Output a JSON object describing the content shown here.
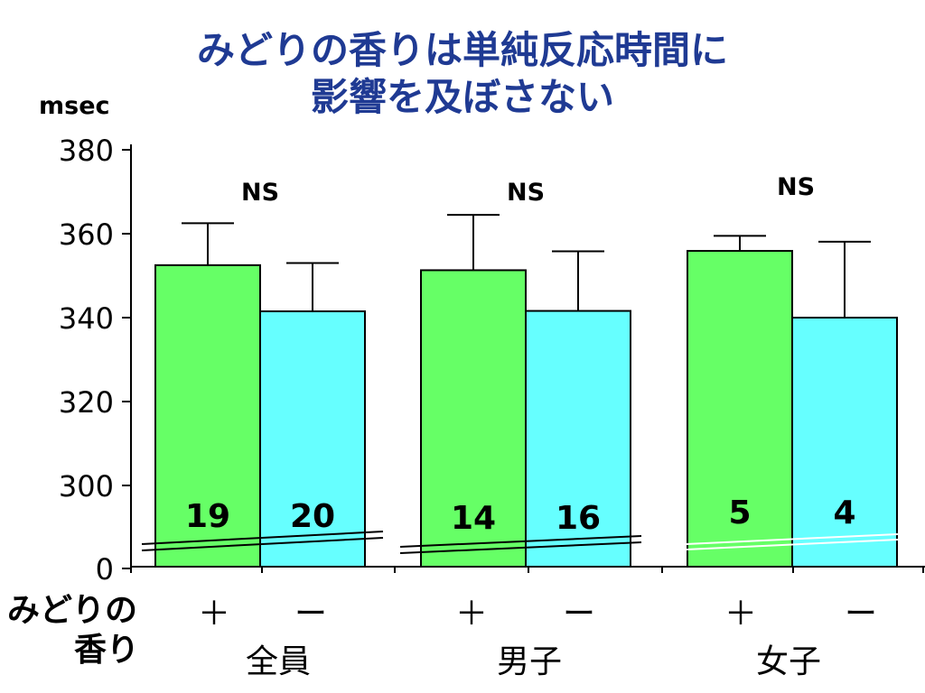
{
  "title_lines": [
    "みどりの香りは単純反応時間に",
    "影響を及ぼさない"
  ],
  "colors": {
    "green": "#66ff66",
    "cyan": "#66ffff",
    "title": "#1f3a93",
    "axis": "#000000"
  },
  "chart_data": {
    "type": "bar",
    "title": "みどりの香りは単純反応時間に 影響を及ぼさない",
    "ylabel": "msec",
    "y_axis_break": true,
    "ylim": [
      300,
      380
    ],
    "yticks": [
      "0",
      "300",
      "320",
      "340",
      "360",
      "380"
    ],
    "row_label_lines": [
      "みどりの",
      "香り"
    ],
    "groups": [
      {
        "name": "全員",
        "significance": "NS",
        "bars": [
          {
            "condition": "＋",
            "value": 352.5,
            "error": 10,
            "n": "19",
            "color": "green"
          },
          {
            "condition": "ー",
            "value": 341.5,
            "error": 11.5,
            "n": "20",
            "color": "cyan"
          }
        ]
      },
      {
        "name": "男子",
        "significance": "NS",
        "bars": [
          {
            "condition": "＋",
            "value": 351.3,
            "error": 13.2,
            "n": "14",
            "color": "green"
          },
          {
            "condition": "ー",
            "value": 341.6,
            "error": 14.2,
            "n": "16",
            "color": "cyan"
          }
        ]
      },
      {
        "name": "女子",
        "significance": "NS",
        "bars": [
          {
            "condition": "＋",
            "value": 355.9,
            "error": 3.6,
            "n": "5",
            "color": "green"
          },
          {
            "condition": "ー",
            "value": 340.0,
            "error": 18.1,
            "n": "4",
            "color": "cyan"
          }
        ]
      }
    ]
  }
}
